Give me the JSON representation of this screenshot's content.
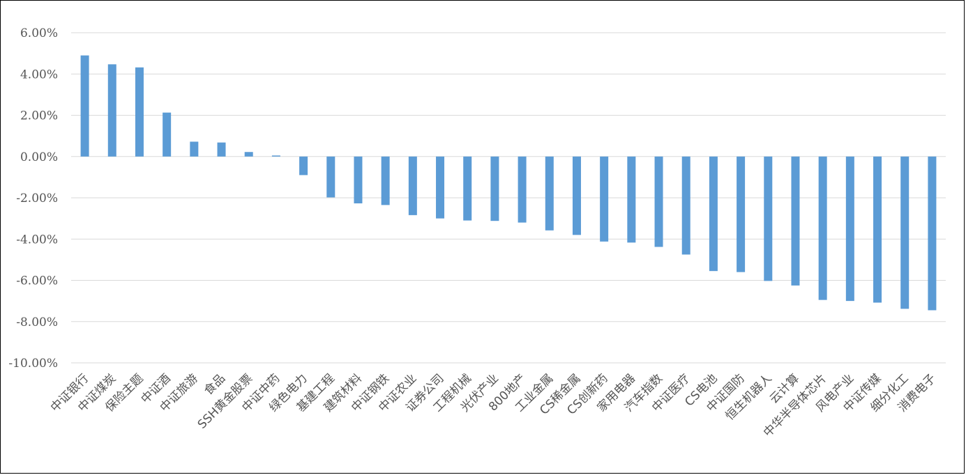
{
  "chart_data": {
    "type": "bar",
    "title": "",
    "xlabel": "",
    "ylabel": "",
    "ylim": [
      -10,
      6
    ],
    "yticks": [
      6,
      4,
      2,
      0,
      -2,
      -4,
      -6,
      -8,
      -10
    ],
    "ytick_labels": [
      "6.00%",
      "4.00%",
      "2.00%",
      "0.00%",
      "-2.00%",
      "-4.00%",
      "-6.00%",
      "-8.00%",
      "-10.00%"
    ],
    "grid": true,
    "legend": "none",
    "bar_color": "#5B9BD5",
    "grid_color": "#D9D9D9",
    "categories": [
      "中证银行",
      "中证煤炭",
      "保险主题",
      "中证酒",
      "中证旅游",
      "食品",
      "SSH黄金股票",
      "中证中药",
      "绿色电力",
      "基建工程",
      "建筑材料",
      "中证钢铁",
      "中证农业",
      "证券公司",
      "工程机械",
      "光伏产业",
      "800地产",
      "工业金属",
      "CS稀金属",
      "CS创新药",
      "家用电器",
      "汽车指数",
      "中证医疗",
      "CS电池",
      "中证国防",
      "恒生机器人",
      "云计算",
      "中华半导体芯片",
      "风电产业",
      "中证传媒",
      "细分化工",
      "消费电子"
    ],
    "values": [
      4.9,
      4.47,
      4.32,
      2.13,
      0.72,
      0.68,
      0.22,
      0.05,
      -0.9,
      -1.98,
      -2.27,
      -2.35,
      -2.84,
      -3.0,
      -3.1,
      -3.12,
      -3.2,
      -3.58,
      -3.8,
      -4.12,
      -4.17,
      -4.38,
      -4.75,
      -5.55,
      -5.6,
      -6.03,
      -6.25,
      -6.95,
      -7.0,
      -7.08,
      -7.38,
      -7.45
    ]
  }
}
